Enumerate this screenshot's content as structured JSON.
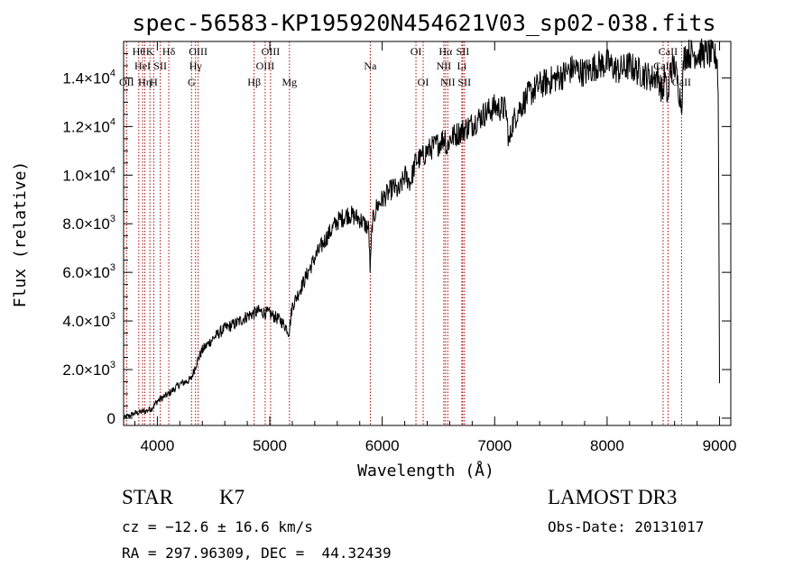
{
  "chart_data": {
    "type": "line",
    "title": "spec-56583-KP195920N454621V03_sp02-038.fits",
    "xlabel": "Wavelength (Å)",
    "ylabel": "Flux (relative)",
    "xlim": [
      3700,
      9100
    ],
    "ylim": [
      -300,
      15500
    ],
    "x_ticks": [
      {
        "value": 4000,
        "label": "4000"
      },
      {
        "value": 5000,
        "label": "5000"
      },
      {
        "value": 6000,
        "label": "6000"
      },
      {
        "value": 7000,
        "label": "7000"
      },
      {
        "value": 8000,
        "label": "8000"
      },
      {
        "value": 9000,
        "label": "9000"
      }
    ],
    "y_ticks": [
      {
        "value": 0,
        "mantissa": "0",
        "exponent": ""
      },
      {
        "value": 2000,
        "mantissa": "2.0×10",
        "exponent": "3"
      },
      {
        "value": 4000,
        "mantissa": "4.0×10",
        "exponent": "3"
      },
      {
        "value": 6000,
        "mantissa": "6.0×10",
        "exponent": "3"
      },
      {
        "value": 8000,
        "mantissa": "8.0×10",
        "exponent": "3"
      },
      {
        "value": 10000,
        "mantissa": "1.0×10",
        "exponent": "4"
      },
      {
        "value": 12000,
        "mantissa": "1.2×10",
        "exponent": "4"
      },
      {
        "value": 14000,
        "mantissa": "1.4×10",
        "exponent": "4"
      }
    ],
    "series": [
      {
        "name": "flux",
        "x": [
          3700,
          3800,
          3900,
          3950,
          4000,
          4050,
          4100,
          4200,
          4300,
          4350,
          4400,
          4500,
          4600,
          4700,
          4800,
          4850,
          4900,
          5000,
          5100,
          5150,
          5170,
          5200,
          5300,
          5400,
          5500,
          5600,
          5700,
          5800,
          5880,
          5893,
          5910,
          5950,
          6000,
          6100,
          6150,
          6200,
          6250,
          6300,
          6350,
          6400,
          6500,
          6562,
          6570,
          6600,
          6700,
          6800,
          6900,
          7000,
          7100,
          7130,
          7150,
          7200,
          7300,
          7400,
          7500,
          7600,
          7700,
          7800,
          7900,
          8000,
          8100,
          8200,
          8300,
          8400,
          8450,
          8498,
          8510,
          8542,
          8560,
          8600,
          8662,
          8680,
          8700,
          8800,
          8900,
          8980,
          8990,
          9000
        ],
        "y": [
          0,
          200,
          300,
          400,
          700,
          850,
          1000,
          1400,
          1600,
          2300,
          2800,
          3300,
          3700,
          3900,
          4200,
          4300,
          4400,
          4300,
          4000,
          3700,
          3500,
          4600,
          5600,
          6600,
          7400,
          8100,
          8400,
          8200,
          7800,
          6000,
          8000,
          8700,
          9000,
          9500,
          9300,
          10000,
          9700,
          10600,
          10700,
          11000,
          11300,
          11600,
          11000,
          11500,
          11800,
          12100,
          12500,
          12800,
          12700,
          11200,
          12000,
          12600,
          13300,
          13700,
          13900,
          14100,
          14400,
          14200,
          14500,
          14600,
          14300,
          14500,
          14200,
          14000,
          14100,
          13300,
          14200,
          13000,
          14300,
          14500,
          12900,
          14700,
          15000,
          15000,
          15000,
          14800,
          12800,
          1500
        ]
      }
    ],
    "lines": [
      {
        "wavelength": 3727,
        "label": "OII",
        "row": 3
      },
      {
        "wavelength": 3835,
        "label": "Hθ",
        "row": 1
      },
      {
        "wavelength": 3869,
        "label": "HeI",
        "row": 2
      },
      {
        "wavelength": 3889,
        "label": "Hη",
        "row": 3
      },
      {
        "wavelength": 3934,
        "label": "K",
        "row": 1
      },
      {
        "wavelength": 3968,
        "label": "H",
        "row": 3
      },
      {
        "wavelength": 4026,
        "label": "SII",
        "row": 2
      },
      {
        "wavelength": 4102,
        "label": "Hδ",
        "row": 1
      },
      {
        "wavelength": 4304,
        "label": "G",
        "row": 3
      },
      {
        "wavelength": 4340,
        "label": "Hγ",
        "row": 2
      },
      {
        "wavelength": 4363,
        "label": "OIII",
        "row": 1
      },
      {
        "wavelength": 4861,
        "label": "Hβ",
        "row": 3
      },
      {
        "wavelength": 4959,
        "label": "OIII",
        "row": 2
      },
      {
        "wavelength": 5007,
        "label": "OIII",
        "row": 1
      },
      {
        "wavelength": 5175,
        "label": "Mg",
        "row": 3
      },
      {
        "wavelength": 5894,
        "label": "Na",
        "row": 2
      },
      {
        "wavelength": 6300,
        "label": "OI",
        "row": 1
      },
      {
        "wavelength": 6364,
        "label": "OI",
        "row": 3
      },
      {
        "wavelength": 6548,
        "label": "NII",
        "row": 2
      },
      {
        "wavelength": 6563,
        "label": "Hα",
        "row": 1
      },
      {
        "wavelength": 6583,
        "label": "NII",
        "row": 3
      },
      {
        "wavelength": 6708,
        "label": "Li",
        "row": 2
      },
      {
        "wavelength": 6716,
        "label": "SII",
        "row": 1
      },
      {
        "wavelength": 6731,
        "label": "SII",
        "row": 3
      },
      {
        "wavelength": 8498,
        "label": "CaII",
        "row": 2
      },
      {
        "wavelength": 8542,
        "label": "CaII",
        "row": 1
      },
      {
        "wavelength": 8662,
        "label": "CaII",
        "row": 3
      }
    ]
  },
  "info": {
    "class": "STAR",
    "subclass": "K7",
    "survey": "LAMOST DR3",
    "cz": "cz = −12.6 ± 16.6 km/s",
    "obs_date": "Obs-Date: 20131017",
    "coords": "RA = 297.96309, DEC =  44.32439"
  },
  "colors": {
    "spectrum": "#000000",
    "line_marker": "#b00000",
    "axis": "#000000"
  }
}
